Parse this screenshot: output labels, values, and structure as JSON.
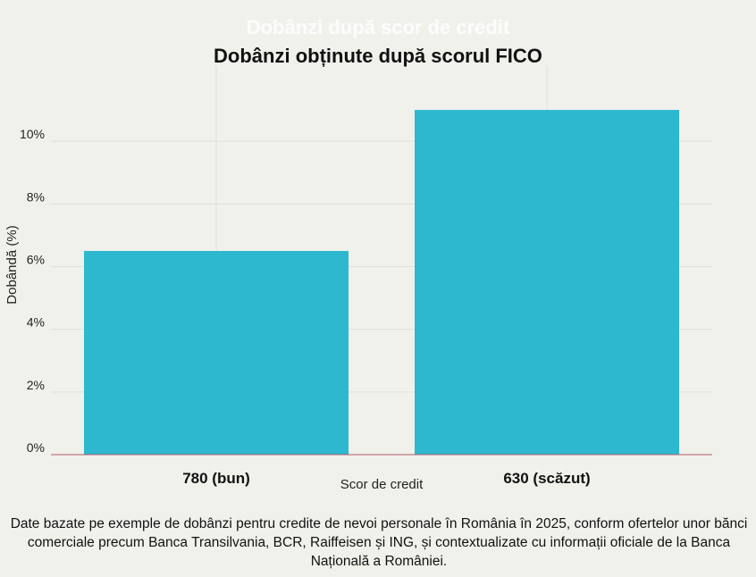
{
  "chart_data": {
    "type": "bar",
    "title": "Dobânzi obținute după scorul FICO",
    "background_title": "Dobânzi după scor de credit",
    "xlabel": "Scor de credit",
    "ylabel": "Dobândă (%)",
    "categories": [
      "780 (bun)",
      "630 (scăzut)"
    ],
    "values": [
      6.5,
      11.0
    ],
    "ylim": [
      0,
      12
    ],
    "yticks": [
      0,
      2,
      4,
      6,
      8,
      10
    ],
    "ytick_labels": [
      "0%",
      "2%",
      "4%",
      "6%",
      "8%",
      "10%"
    ],
    "grid": true,
    "legend": "none",
    "bar_color": "#2db8d0",
    "axis_color": "#b05a6a",
    "grid_color": "#dedede"
  },
  "footnote": "Date bazate pe exemple de dobânzi pentru credite de nevoi personale în România în 2025, conform ofertelor unor bănci comerciale precum Banca Transilvania, BCR, Raiffeisen și ING, și contextualizate cu informații oficiale de la Banca Națională a României."
}
